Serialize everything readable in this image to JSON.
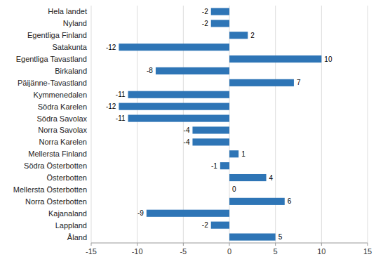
{
  "chart_data": {
    "type": "bar",
    "orientation": "horizontal",
    "categories": [
      "Hela landet",
      "Nyland",
      "Egentliga Finland",
      "Satakunta",
      "Egentliga Tavastland",
      "Birkaland",
      "Päijänne-Tavastland",
      "Kymmenedalen",
      "Södra Karelen",
      "Södra Savolax",
      "Norra Savolax",
      "Norra Karelen",
      "Mellersta Finland",
      "Södra Österbotten",
      "Österbotten",
      "Mellersta Österbotten",
      "Norra Österbotten",
      "Kajanaland",
      "Lappland",
      "Åland"
    ],
    "values": [
      -2,
      -2,
      2,
      -12,
      10,
      -8,
      7,
      -11,
      -12,
      -11,
      -4,
      -4,
      1,
      -1,
      4,
      0,
      6,
      -9,
      -2,
      5
    ],
    "color": "#2E75B6",
    "xlim": [
      -15,
      15
    ],
    "xticks": [
      -15,
      -10,
      -5,
      0,
      5,
      10,
      15
    ],
    "grid": true,
    "data_labels": true
  }
}
